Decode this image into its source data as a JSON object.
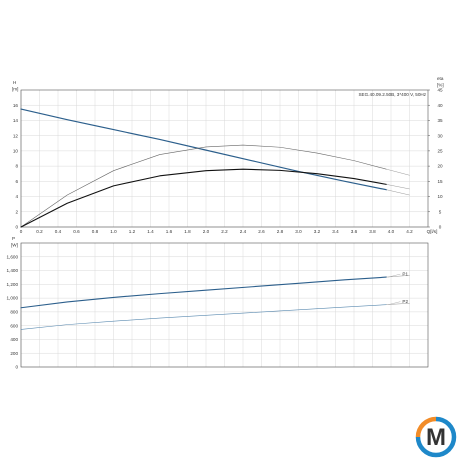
{
  "logo": {
    "letter": "M",
    "ring_colors": [
      "#1e88c9",
      "#f28c28"
    ],
    "letter_color": "#1f2a44"
  },
  "chart_data": [
    {
      "type": "line",
      "title": "SEG.40.09.2.50B, 3*400 V, 50Hz",
      "ylabel": "H [m]",
      "ylabel_right": "eta [%]",
      "xlabel": "Q[l/s]",
      "xlim": [
        0,
        4.4
      ],
      "ylim": [
        0,
        18
      ],
      "ylim_right": [
        0,
        45
      ],
      "x_ticks": [
        "0",
        "0.2",
        "0.4",
        "0.6",
        "0.8",
        "1.0",
        "1.2",
        "1.4",
        "1.6",
        "1.8",
        "2.0",
        "2.2",
        "2.4",
        "2.6",
        "2.8",
        "3.0",
        "3.2",
        "3.4",
        "3.6",
        "3.8",
        "4.0",
        "4.2",
        "Q[l/s]"
      ],
      "y_ticks": [
        "0",
        "2",
        "4",
        "6",
        "8",
        "10",
        "12",
        "14",
        "16",
        "H",
        "[m]"
      ],
      "y_ticks_right": [
        "0",
        "5",
        "10",
        "15",
        "20",
        "25",
        "30",
        "35",
        "40",
        "45",
        "eta",
        "[%]"
      ],
      "grid": true,
      "series": [
        {
          "kind": "head",
          "color": "#2c5f8c",
          "width": 1.2,
          "x": [
            0,
            0.5,
            1.0,
            1.5,
            2.0,
            2.5,
            3.0,
            3.5,
            3.95
          ],
          "y": [
            15.5,
            14.1,
            12.8,
            11.5,
            10.1,
            8.7,
            7.3,
            6.0,
            4.9
          ]
        },
        {
          "kind": "efficiency",
          "axis": "right",
          "color": "#666666",
          "width": 0.6,
          "x": [
            0,
            0.5,
            1.0,
            1.5,
            2.0,
            2.4,
            2.8,
            3.2,
            3.6,
            3.95
          ],
          "y": [
            0,
            10.5,
            18.5,
            23.8,
            26.3,
            26.9,
            26.2,
            24.3,
            21.8,
            19.0
          ]
        },
        {
          "kind": "efficiency",
          "axis": "right",
          "color": "#111111",
          "width": 1.1,
          "x": [
            0,
            0.5,
            1.0,
            1.5,
            2.0,
            2.4,
            2.8,
            3.2,
            3.6,
            3.95
          ],
          "y": [
            0,
            7.8,
            13.5,
            16.8,
            18.5,
            19.0,
            18.6,
            17.5,
            15.9,
            14.0
          ]
        },
        {
          "kind": "head-extension",
          "color": "#9a9a9a",
          "width": 0.5,
          "x": [
            3.95,
            4.2
          ],
          "y": [
            4.9,
            4.2
          ]
        },
        {
          "kind": "efficiency-extension",
          "axis": "right",
          "color": "#9a9a9a",
          "width": 0.5,
          "x": [
            3.95,
            4.2
          ],
          "y": [
            19.0,
            17.0
          ]
        },
        {
          "kind": "efficiency-extension",
          "axis": "right",
          "color": "#9a9a9a",
          "width": 0.5,
          "x": [
            3.95,
            4.2
          ],
          "y": [
            14.0,
            12.5
          ]
        }
      ]
    },
    {
      "type": "line",
      "ylabel": "P [W]",
      "xlim": [
        0,
        4.4
      ],
      "ylim": [
        0,
        1800
      ],
      "y_ticks": [
        "0",
        "200",
        "400",
        "600",
        "800",
        "1,000",
        "1,200",
        "1,400",
        "1,600",
        "P",
        "[W]"
      ],
      "grid": true,
      "series": [
        {
          "name": "P1",
          "color": "#2c5f8c",
          "width": 1.1,
          "x": [
            0,
            0.5,
            1.0,
            1.5,
            2.0,
            2.5,
            3.0,
            3.5,
            3.95
          ],
          "y": [
            860,
            945,
            1010,
            1065,
            1115,
            1165,
            1215,
            1265,
            1305
          ]
        },
        {
          "name": "P2",
          "color": "#5a8ab0",
          "width": 0.6,
          "x": [
            0,
            0.5,
            1.0,
            1.5,
            2.0,
            2.5,
            3.0,
            3.5,
            3.95
          ],
          "y": [
            545,
            615,
            665,
            710,
            750,
            790,
            830,
            870,
            905
          ]
        },
        {
          "kind": "extension",
          "color": "#9a9a9a",
          "width": 0.5,
          "x": [
            3.95,
            4.2
          ],
          "y": [
            1305,
            1330
          ]
        },
        {
          "kind": "extension",
          "color": "#9a9a9a",
          "width": 0.5,
          "x": [
            3.95,
            4.2
          ],
          "y": [
            905,
            925
          ]
        }
      ]
    }
  ]
}
